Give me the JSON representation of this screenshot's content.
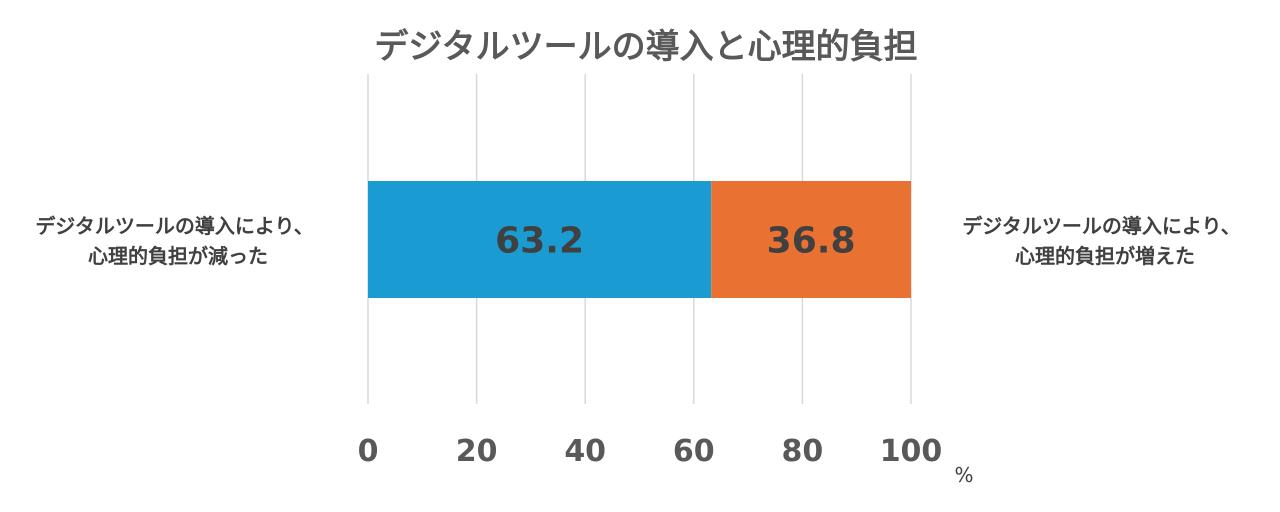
{
  "chart_data": {
    "type": "bar",
    "orientation": "horizontal",
    "stacked": true,
    "title": "デジタルツールの導入と心理的負担",
    "unit": "%",
    "xlim": [
      0,
      100
    ],
    "x_ticks": [
      "0",
      "20",
      "40",
      "60",
      "80",
      "100"
    ],
    "grid": true,
    "series": [
      {
        "label_lines": [
          "デジタルツールの導入により、",
          "心理的負担が減った"
        ],
        "value": 63.2,
        "value_label": "63.2",
        "color": "#1A9BD2"
      },
      {
        "label_lines": [
          "デジタルツールの導入により、",
          "心理的負担が増えた"
        ],
        "value": 36.8,
        "value_label": "36.8",
        "color": "#E97132"
      }
    ]
  }
}
